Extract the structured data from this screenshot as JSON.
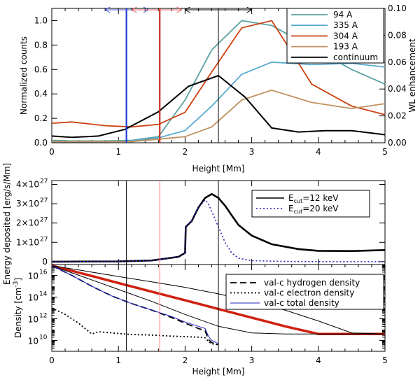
{
  "chart_data": [
    {
      "type": "line",
      "panel": "top",
      "xlabel": "Height [Mm]",
      "ylabel": "Normalized counts",
      "y2label": "WL enhancement",
      "xlim": [
        0,
        5
      ],
      "ylim": [
        0,
        1.1
      ],
      "y2lim": [
        0,
        0.1
      ],
      "xticks": [
        "0",
        "1",
        "2",
        "3",
        "4",
        "5"
      ],
      "yticks": [
        "0.0",
        "0.2",
        "0.4",
        "0.6",
        "0.8",
        "1.0"
      ],
      "y2ticks": [
        "0.00",
        "0.02",
        "0.04",
        "0.06",
        "0.08",
        "0.10"
      ],
      "legend_position": "top-right",
      "series": [
        {
          "name": "94 A",
          "color": "#5ba3a3",
          "x": [
            0,
            0.3,
            0.8,
            1.2,
            1.6,
            2.0,
            2.4,
            2.85,
            3.3,
            3.9,
            4.5,
            5.0
          ],
          "y": [
            0.02,
            0.015,
            0.015,
            0.02,
            0.05,
            0.35,
            0.76,
            1.0,
            0.96,
            0.78,
            0.6,
            0.48
          ]
        },
        {
          "name": "335 A",
          "color": "#5aaad0",
          "x": [
            0,
            0.3,
            0.8,
            1.2,
            1.6,
            2.0,
            2.4,
            2.85,
            3.3,
            3.9,
            4.5,
            5.0
          ],
          "y": [
            0.01,
            0.01,
            0.01,
            0.015,
            0.04,
            0.1,
            0.3,
            0.56,
            0.66,
            0.64,
            0.65,
            0.62
          ]
        },
        {
          "name": "304 A",
          "color": "#cc4010",
          "x": [
            0,
            0.3,
            0.8,
            1.2,
            1.6,
            2.0,
            2.4,
            2.85,
            3.3,
            3.9,
            4.5,
            5.0
          ],
          "y": [
            0.16,
            0.17,
            0.14,
            0.13,
            0.15,
            0.25,
            0.58,
            0.94,
            1.0,
            0.48,
            0.3,
            0.23
          ]
        },
        {
          "name": "193 A",
          "color": "#c09060",
          "x": [
            0,
            0.3,
            0.8,
            1.2,
            1.6,
            2.0,
            2.4,
            2.85,
            3.3,
            3.9,
            4.5,
            5.0
          ],
          "y": [
            0.01,
            0.01,
            0.01,
            0.01,
            0.03,
            0.05,
            0.13,
            0.35,
            0.43,
            0.33,
            0.28,
            0.32
          ]
        },
        {
          "name": "continuum",
          "color": "#000000",
          "axis": "right",
          "x": [
            0,
            0.3,
            0.7,
            1.1,
            1.6,
            2.05,
            2.5,
            2.9,
            3.3,
            3.7,
            4.1,
            4.5,
            5.0
          ],
          "y": [
            0.005,
            0.004,
            0.005,
            0.01,
            0.023,
            0.042,
            0.05,
            0.034,
            0.011,
            0.008,
            0.009,
            0.009,
            0.006
          ]
        }
      ],
      "vlines": [
        {
          "x": 1.12,
          "color": "#1f3fd0"
        },
        {
          "x": 1.62,
          "color": "#d03020"
        },
        {
          "x": 2.5,
          "color": "#000000"
        }
      ],
      "arrows": [
        {
          "from": 0.8,
          "to": 1.45,
          "color": "#4050d0"
        },
        {
          "from": 1.2,
          "to": 1.95,
          "color": "#e06060"
        },
        {
          "from": 2.0,
          "to": 3.0,
          "color": "#000000"
        }
      ]
    },
    {
      "type": "line",
      "panel": "middle",
      "ylabel": "Energy deposited [erg/s/Mm]",
      "xlim": [
        0,
        5
      ],
      "ylim": [
        -0.15,
        4.2
      ],
      "y_exponent": "27",
      "ytick_values": [
        0,
        1,
        2,
        3,
        4
      ],
      "ytick_labels": [
        "0",
        "1×10",
        "2×10",
        "3×10",
        "4×10"
      ],
      "legend_position": "top-right",
      "series": [
        {
          "name": "E",
          "legend_sub": "cut",
          "legend_value": "=12 keV",
          "style": "solid",
          "x": [
            0,
            1.0,
            1.5,
            1.9,
            2.0,
            2.01,
            2.1,
            2.2,
            2.3,
            2.4,
            2.5,
            2.6,
            2.7,
            2.8,
            3.0,
            3.3,
            3.7,
            4.0,
            4.5,
            5.0
          ],
          "y": [
            0,
            0.01,
            0.06,
            0.25,
            0.45,
            1.8,
            2.1,
            2.8,
            3.3,
            3.5,
            3.3,
            2.9,
            2.4,
            1.9,
            1.35,
            0.9,
            0.65,
            0.56,
            0.55,
            0.6
          ]
        },
        {
          "name": "E",
          "legend_sub": "cut",
          "legend_value": "=20 keV",
          "style": "dotted",
          "x": [
            0,
            1.0,
            1.5,
            1.9,
            2.0,
            2.01,
            2.1,
            2.2,
            2.3,
            2.35,
            2.4,
            2.5,
            2.6,
            2.7,
            2.8,
            3.0,
            3.5,
            4.0,
            5.0
          ],
          "y": [
            0,
            0.01,
            0.06,
            0.25,
            0.45,
            1.8,
            2.1,
            2.8,
            3.2,
            3.0,
            2.6,
            1.8,
            1.0,
            0.45,
            0.18,
            0.05,
            0.01,
            0.0,
            0.0
          ]
        }
      ],
      "vlines": [
        {
          "x": 1.12,
          "color": "#000000"
        },
        {
          "x": 1.62,
          "color": "#ff8080"
        },
        {
          "x": 2.5,
          "color": "#000000"
        }
      ]
    },
    {
      "type": "line",
      "panel": "bottom",
      "xlabel": "Height [Mm]",
      "ylabel": "Density [cm",
      "ylabel_sup": "-3",
      "ylabel_end": "]",
      "xlim": [
        0,
        5
      ],
      "ylim_log10": [
        9,
        17
      ],
      "yscale": "log",
      "xticks": [
        "0",
        "1",
        "2",
        "3",
        "4",
        "5"
      ],
      "ytick_exponents": [
        "10",
        "12",
        "14",
        "16"
      ],
      "ytick_base": "10",
      "legend_position": "top-right",
      "series": [
        {
          "name": "val-c hydrogen density",
          "style": "dashed",
          "color": "#000000",
          "x": [
            0,
            0.3,
            0.6,
            0.9,
            1.2,
            1.5,
            1.8,
            2.0,
            2.2,
            2.3,
            2.35,
            2.4,
            2.5
          ],
          "y_log10": [
            16.9,
            16.0,
            15.0,
            14.1,
            13.4,
            12.8,
            12.1,
            11.6,
            11.1,
            10.9,
            10.1,
            9.8,
            9.6
          ]
        },
        {
          "name": "val-c electron density",
          "style": "dotted",
          "color": "#000000",
          "x": [
            0,
            0.2,
            0.4,
            0.6,
            0.7,
            0.9,
            1.2,
            1.5,
            1.8,
            2.0,
            2.2,
            2.3,
            2.35,
            2.4,
            2.5
          ],
          "y_log10": [
            13.0,
            12.4,
            11.6,
            10.6,
            10.8,
            10.7,
            10.55,
            10.5,
            10.4,
            10.35,
            10.3,
            10.25,
            9.9,
            9.7,
            9.6
          ]
        },
        {
          "name": "val-c total density",
          "style": "solid",
          "color": "#2020c0",
          "x": [
            0,
            0.3,
            0.6,
            0.9,
            1.2,
            1.5,
            1.8,
            2.0,
            2.2,
            2.3,
            2.35,
            2.4,
            2.5
          ],
          "y_log10": [
            16.9,
            16.0,
            15.0,
            14.1,
            13.4,
            12.8,
            12.2,
            11.7,
            11.3,
            11.1,
            10.4,
            10.0,
            9.7
          ]
        }
      ],
      "extra_lines": [
        {
          "color": "#d02010",
          "width": 3.5,
          "x": [
            0,
            0.5,
            1.0,
            1.5,
            2.0,
            2.5,
            3.0,
            3.5,
            4.0,
            4.3,
            5.0
          ],
          "y_log10": [
            16.9,
            16.1,
            15.3,
            14.5,
            13.7,
            12.9,
            12.1,
            11.3,
            10.6,
            10.6,
            10.6
          ]
        },
        {
          "color": "#000000",
          "width": 1,
          "x": [
            0,
            0.5,
            1.0,
            1.5,
            2.0,
            2.5,
            3.0,
            3.5,
            4.0,
            4.5,
            5.0
          ],
          "y_log10": [
            16.9,
            16.4,
            15.9,
            15.4,
            14.9,
            14.3,
            13.6,
            12.8,
            11.8,
            10.7,
            10.6
          ]
        },
        {
          "color": "#000000",
          "width": 1,
          "x": [
            0,
            0.5,
            1.0,
            1.5,
            2.0,
            2.5,
            3.0,
            3.5,
            4.0,
            4.5,
            5.0
          ],
          "y_log10": [
            16.9,
            15.8,
            14.7,
            13.6,
            12.4,
            11.3,
            10.7,
            10.6,
            10.6,
            10.6,
            10.6
          ]
        }
      ],
      "vlines": [
        {
          "x": 1.12,
          "color": "#000000"
        },
        {
          "x": 1.62,
          "color": "#ff8080"
        },
        {
          "x": 2.5,
          "color": "#000000"
        }
      ]
    }
  ]
}
